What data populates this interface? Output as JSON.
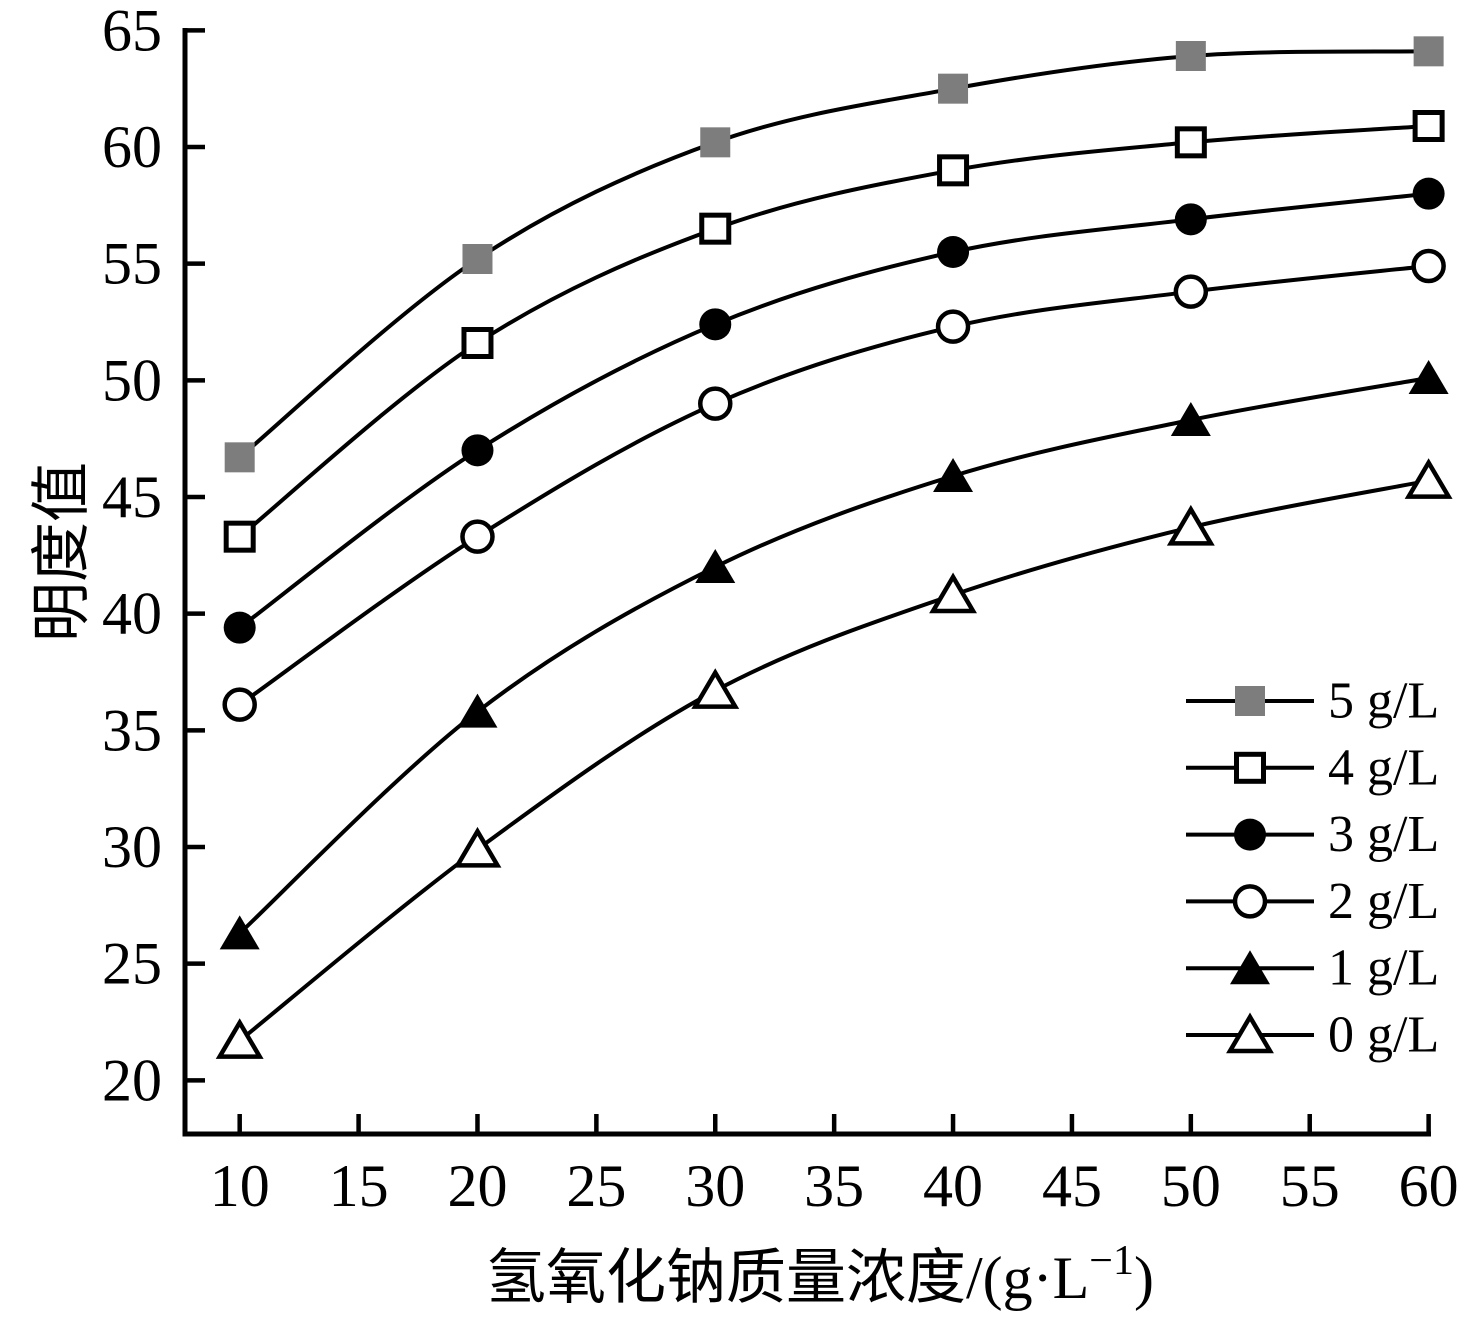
{
  "chart_data": {
    "type": "line",
    "title": "",
    "xlabel_prefix": "氢氧化钠质量浓度/(g·L",
    "xlabel_sup": "−1",
    "xlabel_suffix": ")",
    "ylabel": "明度值",
    "x": [
      10,
      20,
      30,
      40,
      50,
      60
    ],
    "xticks": [
      "10",
      "15",
      "20",
      "25",
      "30",
      "35",
      "40",
      "45",
      "50",
      "55",
      "60"
    ],
    "yticks": [
      "20",
      "25",
      "30",
      "35",
      "40",
      "45",
      "50",
      "55",
      "60",
      "65"
    ],
    "xlim": [
      7.7,
      60.1
    ],
    "ylim": [
      17.7,
      65.1
    ],
    "grid": false,
    "legend_position": "lower right",
    "series": [
      {
        "name": "5 g/L",
        "marker": "square-filled",
        "marker_color": "#7d7d7d",
        "values": [
          46.7,
          55.2,
          60.2,
          62.5,
          63.9,
          64.1
        ]
      },
      {
        "name": "4 g/L",
        "marker": "square-open",
        "marker_color": "#ffffff",
        "values": [
          43.3,
          51.6,
          56.5,
          59.0,
          60.2,
          60.9
        ]
      },
      {
        "name": "3 g/L",
        "marker": "circle-filled",
        "marker_color": "#000000",
        "values": [
          39.4,
          47.0,
          52.4,
          55.5,
          56.9,
          58.0
        ]
      },
      {
        "name": "2 g/L",
        "marker": "circle-open",
        "marker_color": "#ffffff",
        "values": [
          36.1,
          43.3,
          49.0,
          52.3,
          53.8,
          54.9
        ]
      },
      {
        "name": "1 g/L",
        "marker": "triangle-filled",
        "marker_color": "#000000",
        "values": [
          26.3,
          35.8,
          42.0,
          45.9,
          48.3,
          50.1
        ]
      },
      {
        "name": "0 g/L",
        "marker": "triangle-open",
        "marker_color": "#ffffff",
        "values": [
          21.7,
          29.9,
          36.7,
          40.8,
          43.7,
          45.7
        ]
      }
    ],
    "colors": {
      "line": "#000000",
      "filled_square_gray": "#7d7d7d",
      "background": "#ffffff"
    }
  }
}
